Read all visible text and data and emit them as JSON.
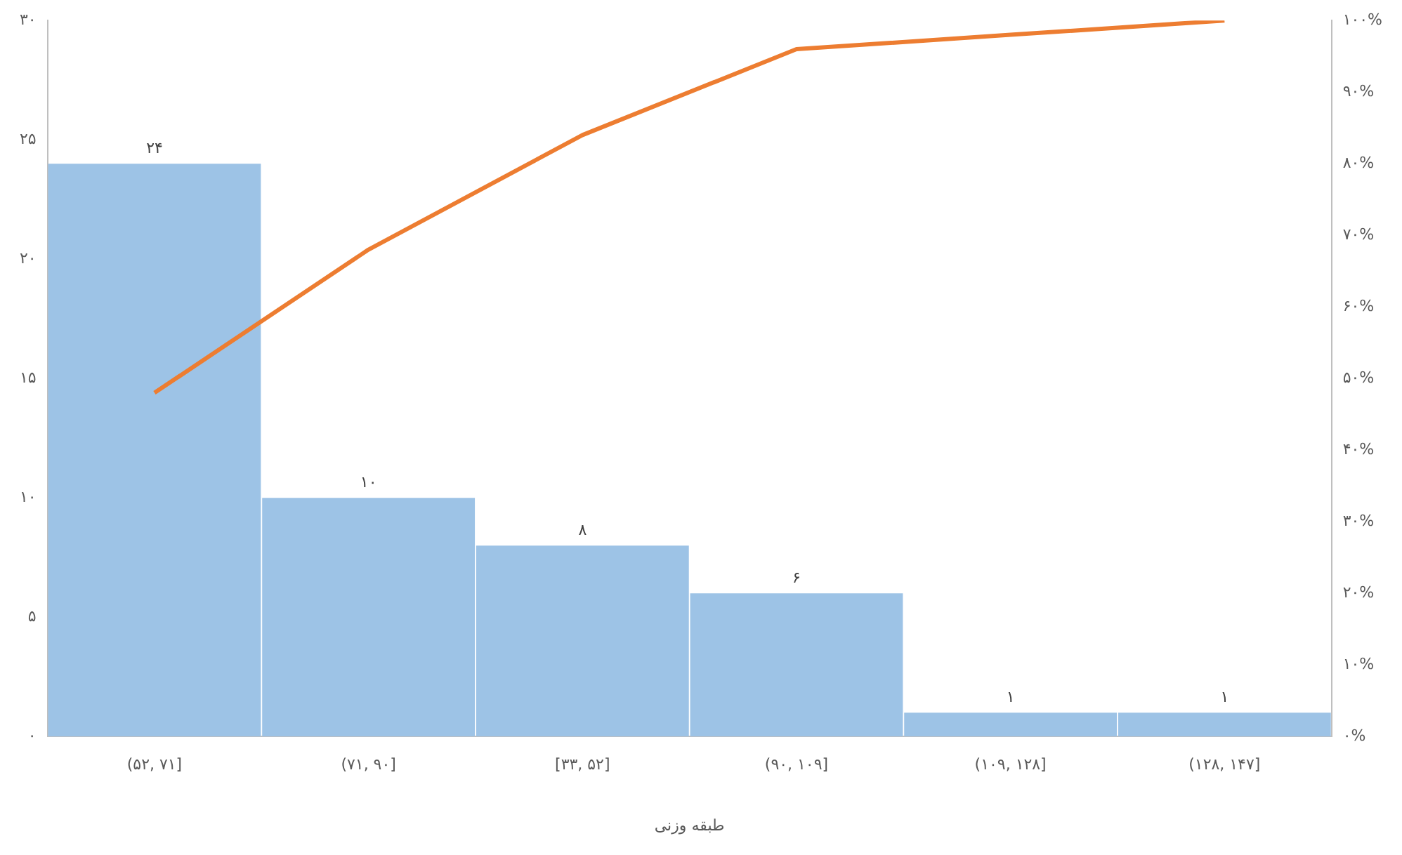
{
  "chart_data": {
    "type": "bar",
    "xlabel": "طبقه وزنی",
    "categories": [
      "(۵۲, ۷۱]",
      "(۷۱, ۹۰]",
      "[۳۳, ۵۲]",
      "(۹۰, ۱۰۹]",
      "(۱۰۹, ۱۲۸]",
      "(۱۲۸, ۱۴۷]"
    ],
    "series": [
      {
        "color": "#9dc3e6",
        "values": [
          24,
          10,
          8,
          6,
          1,
          1
        ],
        "value_labels": [
          "۲۴",
          "۱۰",
          "۸",
          "۶",
          "۱",
          "۱"
        ]
      },
      {
        "type": "line",
        "color": "#ed7d31",
        "axis": "y2",
        "values": [
          48,
          68,
          84,
          96,
          98,
          100
        ]
      }
    ],
    "ylim": [
      0,
      30
    ],
    "yticks": [
      {
        "value": 0,
        "label": "۰"
      },
      {
        "value": 5,
        "label": "۵"
      },
      {
        "value": 10,
        "label": "۱۰"
      },
      {
        "value": 15,
        "label": "۱۵"
      },
      {
        "value": 20,
        "label": "۲۰"
      },
      {
        "value": 25,
        "label": "۲۵"
      },
      {
        "value": 30,
        "label": "۳۰"
      }
    ],
    "y2lim": [
      0,
      100
    ],
    "y2ticks": [
      {
        "value": 0,
        "label": "۰%"
      },
      {
        "value": 10,
        "label": "۱۰%"
      },
      {
        "value": 20,
        "label": "۲۰%"
      },
      {
        "value": 30,
        "label": "۳۰%"
      },
      {
        "value": 40,
        "label": "۴۰%"
      },
      {
        "value": 50,
        "label": "۵۰%"
      },
      {
        "value": 60,
        "label": "۶۰%"
      },
      {
        "value": 70,
        "label": "۷۰%"
      },
      {
        "value": 80,
        "label": "۸۰%"
      },
      {
        "value": 90,
        "label": "۹۰%"
      },
      {
        "value": 100,
        "label": "۱۰۰%"
      }
    ],
    "grid": false,
    "legend": false
  }
}
